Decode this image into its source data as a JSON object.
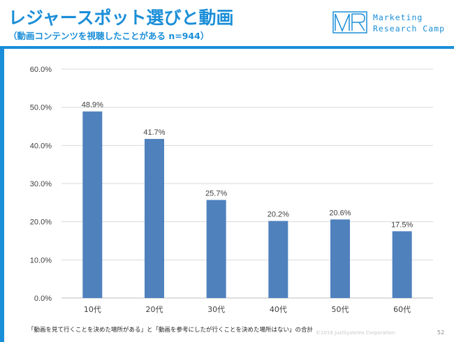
{
  "header": {
    "title": "レジャースポット選びと動画",
    "subtitle": "（動画コンテンツを視聴したことがある n=944）"
  },
  "logo": {
    "line1": "Marketing",
    "line2": "Research Camp"
  },
  "colors": {
    "accent": "#1a8ed8",
    "bar": "#4f81bd"
  },
  "chart_data": {
    "type": "bar",
    "categories": [
      "10代",
      "20代",
      "30代",
      "40代",
      "50代",
      "60代"
    ],
    "values": [
      48.9,
      41.7,
      25.7,
      20.2,
      20.6,
      17.5
    ],
    "value_labels": [
      "48.9%",
      "41.7%",
      "25.7%",
      "20.2%",
      "20.6%",
      "17.5%"
    ],
    "ylim": [
      0,
      60
    ],
    "yticks": [
      0,
      10,
      20,
      30,
      40,
      50,
      60
    ],
    "ytick_labels": [
      "0.0%",
      "10.0%",
      "20.0%",
      "30.0%",
      "40.0%",
      "50.0%",
      "60.0%"
    ],
    "grid": true,
    "title": "",
    "xlabel": "",
    "ylabel": ""
  },
  "footer": {
    "note": "「動画を見て行くことを決めた場所がある」と「動画を参考にしたが行くことを決めた場所はない」の合計",
    "copyright": "©2018 JustSystems Corporation",
    "page": "52"
  }
}
